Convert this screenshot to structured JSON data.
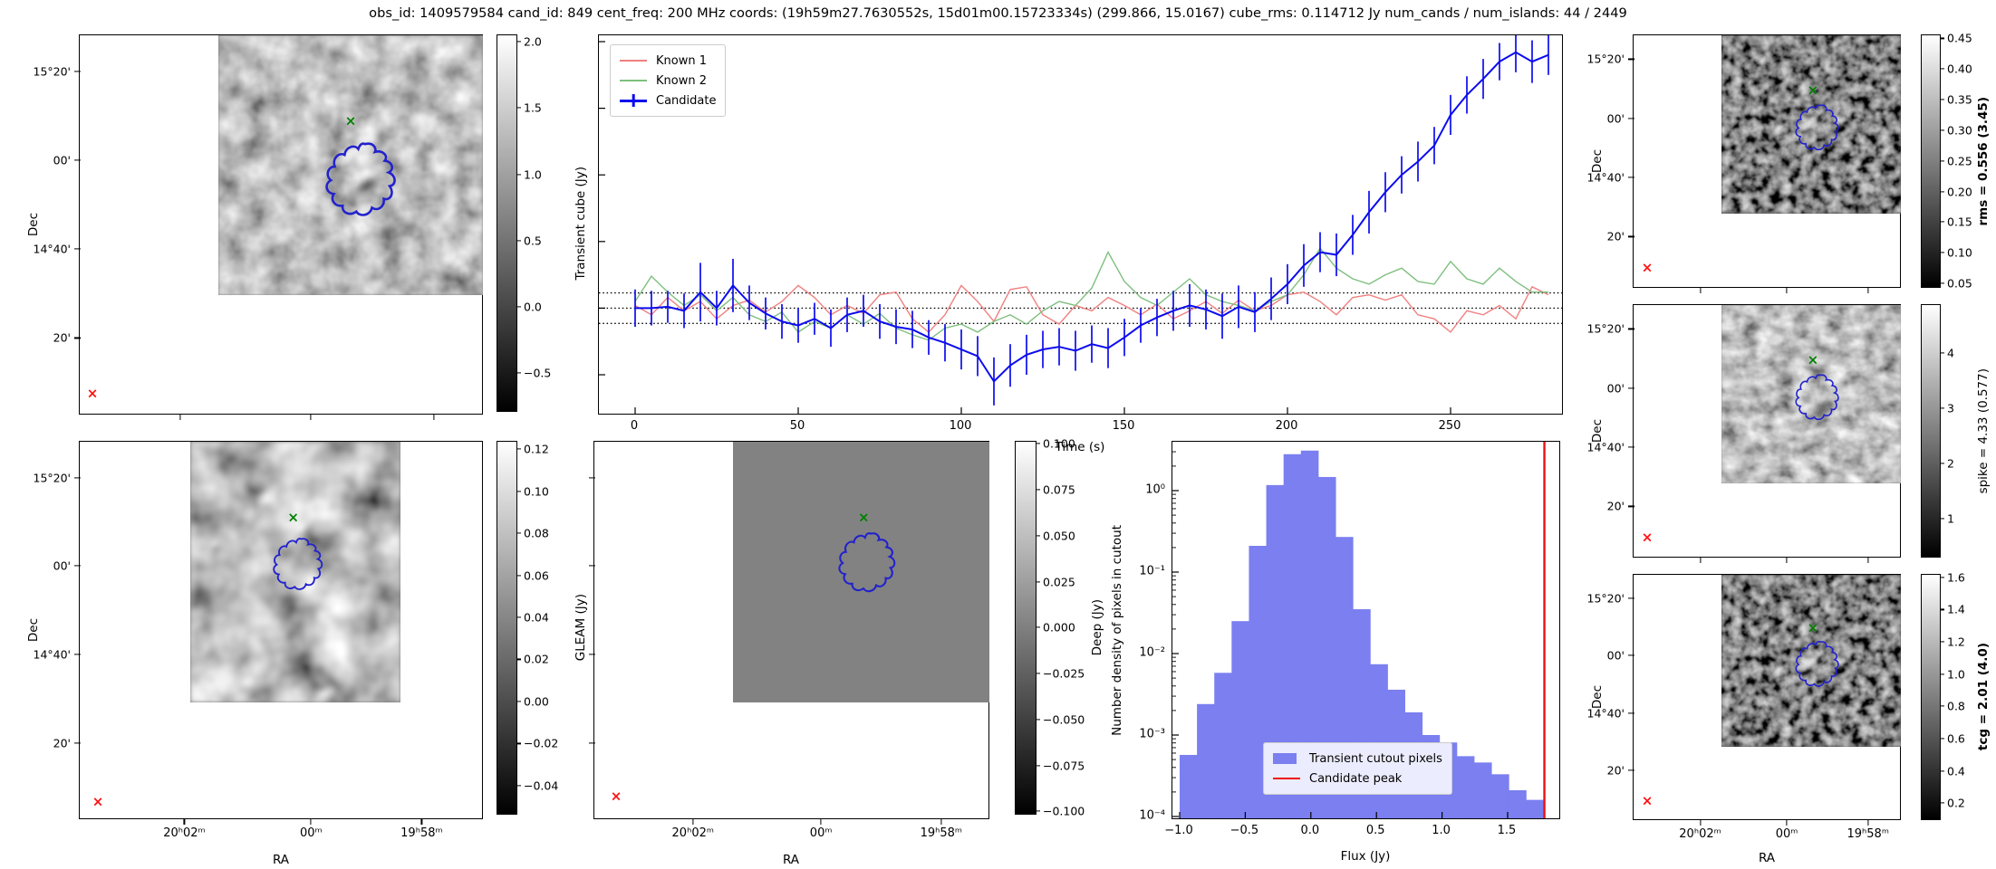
{
  "title": "obs_id: 1409579584 cand_id: 849 cent_freq: 200 MHz coords: (19h59m27.7630552s, 15d01m00.15723334s) (299.866, 15.0167) cube_rms: 0.114712 Jy num_cands / num_islands: 44 / 2449",
  "axes": {
    "dec_label": "Dec",
    "ra_label": "RA",
    "dec_ticks": [
      "15°20'",
      "00'",
      "14°40'",
      "20'"
    ],
    "ra_ticks": [
      "20ʰ02ᵐ",
      "00ᵐ",
      "19ʰ58ᵐ"
    ]
  },
  "colorbars": {
    "transient": {
      "label": "Transient cube (Jy)",
      "ticks": [
        "2.0",
        "1.5",
        "1.0",
        "0.5",
        "0.0",
        "−0.5"
      ]
    },
    "gleam": {
      "label": "GLEAM (Jy)",
      "ticks": [
        "0.12",
        "0.10",
        "0.08",
        "0.06",
        "0.04",
        "0.02",
        "0.00",
        "−0.02",
        "−0.04"
      ]
    },
    "deep": {
      "label": "Deep (Jy)",
      "ticks": [
        "0.100",
        "0.075",
        "0.050",
        "0.025",
        "0.000",
        "−0.025",
        "−0.050",
        "−0.075",
        "−0.100"
      ]
    },
    "rms": {
      "label": "rms = 0.556 (3.45)",
      "bold": true,
      "ticks": [
        "0.45",
        "0.40",
        "0.35",
        "0.30",
        "0.25",
        "0.20",
        "0.15",
        "0.10",
        "0.05"
      ]
    },
    "spike": {
      "label": "spike = 4.33 (0.577)",
      "bold": false,
      "ticks": [
        "4",
        "3",
        "2",
        "1"
      ]
    },
    "tcg": {
      "label": "tcg = 2.01 (4.0)",
      "bold": true,
      "ticks": [
        "1.6",
        "1.4",
        "1.2",
        "1.0",
        "0.8",
        "0.6",
        "0.4",
        "0.2"
      ]
    }
  },
  "markers": {
    "candidate_contour_color": "#2222cc",
    "catalog_marker": "×",
    "catalog_marker_color": "#008000",
    "corner_marker": "×",
    "corner_marker_color": "#ff1111"
  },
  "chart_data": [
    {
      "id": "lightcurve",
      "type": "line",
      "xlabel": "Time (s)",
      "xticks": [
        0,
        50,
        100,
        150,
        200,
        250
      ],
      "xlim": [
        -12,
        286
      ],
      "ylim": [
        -0.81,
        2.05
      ],
      "yticks_unlabeled": [
        2.0,
        1.5,
        1.0,
        0.5,
        0.0,
        -0.5
      ],
      "hlines_dotted": [
        0.114712,
        0.0,
        -0.114712
      ],
      "legend": [
        "Known 1",
        "Known 2",
        "Candidate"
      ],
      "colors": {
        "known1": "#f08080",
        "known2": "#7fbf7f",
        "candidate": "#0c0cee"
      },
      "x": [
        0,
        5,
        10,
        15,
        20,
        25,
        30,
        35,
        40,
        45,
        50,
        55,
        60,
        65,
        70,
        75,
        80,
        85,
        90,
        95,
        100,
        105,
        110,
        115,
        120,
        125,
        130,
        135,
        140,
        145,
        150,
        155,
        160,
        165,
        170,
        175,
        180,
        185,
        190,
        195,
        200,
        205,
        210,
        215,
        220,
        225,
        230,
        235,
        240,
        245,
        250,
        255,
        260,
        265,
        270,
        275,
        280
      ],
      "series": [
        {
          "name": "Known 1",
          "values": [
            0.02,
            -0.05,
            0.08,
            -0.02,
            0.05,
            -0.08,
            0.02,
            0.06,
            -0.03,
            0.05,
            0.17,
            0.08,
            -0.05,
            0.02,
            -0.04,
            0.1,
            0.12,
            -0.08,
            -0.18,
            -0.05,
            0.17,
            0.05,
            -0.1,
            0.14,
            0.16,
            -0.05,
            -0.12,
            0.02,
            -0.02,
            0.08,
            0.02,
            -0.05,
            0.03,
            -0.08,
            -0.02,
            0.05,
            -0.04,
            0.06,
            -0.02,
            0.02,
            0.1,
            0.12,
            0.05,
            -0.05,
            0.08,
            0.1,
            0.06,
            0.1,
            -0.05,
            -0.08,
            -0.18,
            -0.02,
            -0.05,
            0.02,
            -0.08,
            0.16,
            0.1
          ]
        },
        {
          "name": "Known 2",
          "values": [
            0.05,
            0.24,
            0.12,
            0.02,
            0.1,
            -0.02,
            0.08,
            -0.05,
            -0.1,
            -0.03,
            -0.18,
            -0.1,
            -0.15,
            -0.05,
            -0.12,
            -0.04,
            -0.15,
            -0.2,
            -0.24,
            -0.15,
            -0.12,
            -0.18,
            -0.1,
            -0.05,
            -0.12,
            -0.02,
            0.05,
            0.02,
            0.15,
            0.42,
            0.2,
            0.08,
            0.02,
            0.12,
            0.22,
            0.1,
            0.05,
            0.02,
            -0.02,
            0.05,
            0.1,
            0.25,
            0.45,
            0.3,
            0.22,
            0.18,
            0.25,
            0.3,
            0.2,
            0.18,
            0.35,
            0.22,
            0.18,
            0.3,
            0.2,
            0.12,
            0.12
          ]
        },
        {
          "name": "Candidate",
          "values": [
            0.0,
            0.0,
            0.01,
            -0.02,
            0.12,
            0.0,
            0.17,
            0.04,
            -0.04,
            -0.1,
            -0.13,
            -0.08,
            -0.15,
            -0.05,
            -0.02,
            -0.1,
            -0.14,
            -0.16,
            -0.22,
            -0.26,
            -0.31,
            -0.36,
            -0.55,
            -0.43,
            -0.35,
            -0.31,
            -0.29,
            -0.32,
            -0.27,
            -0.3,
            -0.22,
            -0.13,
            -0.07,
            -0.02,
            0.02,
            -0.01,
            -0.06,
            0.01,
            -0.03,
            0.07,
            0.18,
            0.32,
            0.42,
            0.4,
            0.55,
            0.72,
            0.87,
            1.0,
            1.1,
            1.22,
            1.45,
            1.6,
            1.72,
            1.85,
            1.92,
            1.85,
            1.9
          ],
          "yerr": [
            0.14,
            0.13,
            0.12,
            0.13,
            0.22,
            0.13,
            0.2,
            0.13,
            0.12,
            0.13,
            0.13,
            0.12,
            0.14,
            0.13,
            0.12,
            0.13,
            0.13,
            0.14,
            0.13,
            0.14,
            0.15,
            0.15,
            0.18,
            0.16,
            0.15,
            0.14,
            0.14,
            0.15,
            0.14,
            0.15,
            0.14,
            0.13,
            0.14,
            0.15,
            0.16,
            0.15,
            0.17,
            0.16,
            0.15,
            0.16,
            0.15,
            0.16,
            0.15,
            0.16,
            0.15,
            0.16,
            0.15,
            0.14,
            0.15,
            0.14,
            0.15,
            0.14,
            0.15,
            0.14,
            0.15,
            0.16,
            0.15
          ]
        }
      ]
    },
    {
      "id": "pixel_histogram",
      "type": "bar",
      "xlabel": "Flux (Jy)",
      "ylabel": "Number density of pixels in cutout",
      "xtick_labels": [
        "−1.0",
        "−0.5",
        "0.0",
        "0.5",
        "1.0",
        "1.5"
      ],
      "xtick_vals": [
        -1.0,
        -0.5,
        0.0,
        0.5,
        1.0,
        1.5
      ],
      "ytick_labels": [
        "10⁰",
        "10⁻¹",
        "10⁻²",
        "10⁻³",
        "10⁻⁴"
      ],
      "ytick_vals": [
        1,
        0.1,
        0.01,
        0.001,
        0.0001
      ],
      "xlim": [
        -1.06,
        1.91
      ],
      "bin_start": -1.0,
      "bin_width": 0.132,
      "values": [
        0.00057,
        0.0024,
        0.0058,
        0.025,
        0.21,
        1.17,
        2.8,
        3.1,
        1.47,
        0.27,
        0.035,
        0.0074,
        0.0036,
        0.0019,
        0.001,
        0.00081,
        0.00055,
        0.00046,
        0.00033,
        0.00021,
        0.00016
      ],
      "candidate_peak": 1.78,
      "legend": [
        "Transient cutout pixels",
        "Candidate peak"
      ],
      "bar_color": "#7b7ff0",
      "line_color": "#ee1111"
    }
  ]
}
